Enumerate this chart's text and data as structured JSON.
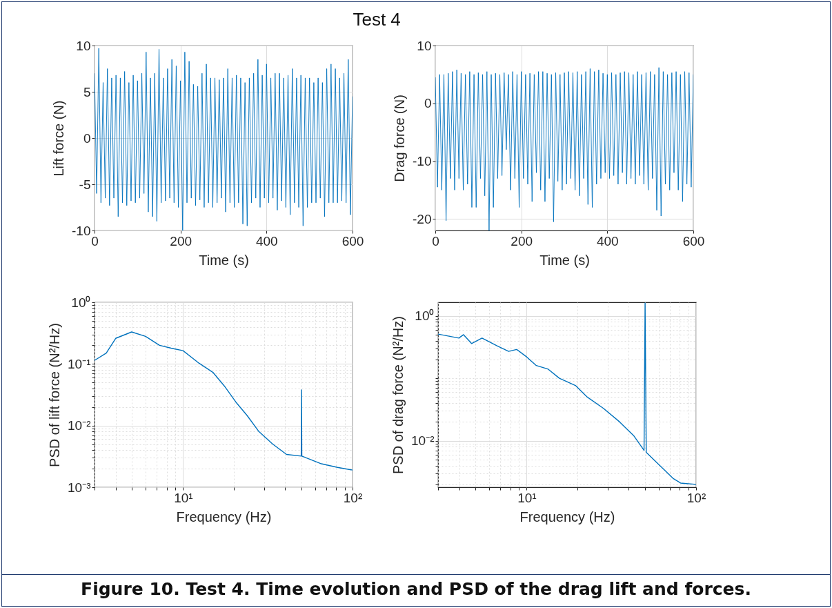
{
  "chart_data": [
    {
      "type": "line",
      "title": "Test 4",
      "annotations": [
        "Figure 10. Test 4. Time evolution and PSD of the drag lift and forces."
      ],
      "xlabel": "Time (s)",
      "ylabel": "Lift force (N)",
      "xlim": [
        0,
        600
      ],
      "ylim": [
        -10,
        10
      ],
      "xticks": [
        0,
        200,
        400,
        600
      ],
      "yticks": [
        -10,
        -5,
        0,
        5,
        10
      ],
      "grid": true,
      "x": [
        0,
        5,
        10,
        15,
        20,
        25,
        30,
        35,
        40,
        45,
        50,
        55,
        60,
        65,
        70,
        75,
        80,
        85,
        90,
        95,
        100,
        105,
        110,
        115,
        120,
        125,
        130,
        135,
        140,
        145,
        150,
        155,
        160,
        165,
        170,
        175,
        180,
        185,
        190,
        195,
        200,
        205,
        210,
        215,
        220,
        225,
        230,
        235,
        240,
        245,
        250,
        255,
        260,
        265,
        270,
        275,
        280,
        285,
        290,
        295,
        300,
        305,
        310,
        315,
        320,
        325,
        330,
        335,
        340,
        345,
        350,
        355,
        360,
        365,
        370,
        375,
        380,
        385,
        390,
        395,
        400,
        405,
        410,
        415,
        420,
        425,
        430,
        435,
        440,
        445,
        450,
        455,
        460,
        465,
        470,
        475,
        480,
        485,
        490,
        495,
        500,
        505,
        510,
        515,
        520,
        525,
        530,
        535,
        540,
        545,
        550,
        555,
        560,
        565,
        570,
        575,
        580,
        585,
        590,
        595,
        600
      ],
      "series": [
        {
          "color": "#0072bd",
          "values": [
            7,
            -6,
            9.7,
            -7,
            6,
            -6.5,
            7.5,
            -7.3,
            6.5,
            -6.5,
            6.8,
            -8.5,
            6.5,
            -7,
            7.2,
            -7.3,
            6,
            -6.8,
            6.8,
            -7,
            6.2,
            -6.5,
            7,
            -6,
            9.3,
            -8,
            6.5,
            -8.5,
            7,
            -9,
            9.6,
            -7,
            6.5,
            -6.8,
            7.5,
            -6.5,
            8.5,
            -7,
            7.8,
            -7.5,
            6.2,
            -10,
            9.3,
            -7,
            8.3,
            -6.5,
            5.8,
            -7.3,
            5.6,
            -6.7,
            7,
            -7.5,
            8,
            -7,
            6.5,
            -7.5,
            6.5,
            -7,
            6.3,
            -6.5,
            6.5,
            -8,
            7.5,
            -7,
            6.5,
            -7.5,
            6.8,
            -7,
            6.5,
            -9.3,
            6,
            -9.5,
            6.5,
            -7,
            7,
            -6.5,
            8.5,
            -7.5,
            6.8,
            -6.5,
            8,
            -7,
            6.5,
            -6.5,
            7,
            -7.8,
            7,
            -6.8,
            6.5,
            -7.5,
            6.8,
            -8.3,
            7.5,
            -7,
            6.5,
            -7.5,
            6.8,
            -9.5,
            6.5,
            -7.5,
            6.5,
            -7,
            6,
            -7,
            6.5,
            -6.5,
            6,
            -8.5,
            7.5,
            -7,
            8,
            -7,
            7.5,
            -7,
            6.5,
            -6.8,
            7,
            -7,
            8.5,
            -8.3,
            4.5
          ]
        }
      ]
    },
    {
      "type": "line",
      "xlabel": "Time (s)",
      "ylabel": "Drag force (N)",
      "xlim": [
        0,
        600
      ],
      "ylim": [
        -22,
        10
      ],
      "xticks": [
        0,
        200,
        400,
        600
      ],
      "yticks": [
        -20,
        -10,
        0,
        10
      ],
      "grid": true,
      "x": [
        0,
        5,
        10,
        15,
        20,
        25,
        30,
        35,
        40,
        45,
        50,
        55,
        60,
        65,
        70,
        75,
        80,
        85,
        90,
        95,
        100,
        105,
        110,
        115,
        120,
        125,
        130,
        135,
        140,
        145,
        150,
        155,
        160,
        165,
        170,
        175,
        180,
        185,
        190,
        195,
        200,
        205,
        210,
        215,
        220,
        225,
        230,
        235,
        240,
        245,
        250,
        255,
        260,
        265,
        270,
        275,
        280,
        285,
        290,
        295,
        300,
        305,
        310,
        315,
        320,
        325,
        330,
        335,
        340,
        345,
        350,
        355,
        360,
        365,
        370,
        375,
        380,
        385,
        390,
        395,
        400,
        405,
        410,
        415,
        420,
        425,
        430,
        435,
        440,
        445,
        450,
        455,
        460,
        465,
        470,
        475,
        480,
        485,
        490,
        495,
        500,
        505,
        510,
        515,
        520,
        525,
        530,
        535,
        540,
        545,
        550,
        555,
        560,
        565,
        570,
        575,
        580,
        585,
        590,
        595,
        600
      ],
      "series": [
        {
          "color": "#0072bd",
          "values": [
            4.5,
            -14.5,
            5,
            -15,
            5,
            -20.3,
            5.2,
            -13,
            5.5,
            -15,
            5.8,
            -13,
            5.2,
            -15,
            5,
            -14,
            5.5,
            -18,
            5,
            -18,
            5.3,
            -13,
            5,
            -16,
            5.5,
            -22,
            5,
            -18,
            5.2,
            -13,
            5,
            -12.5,
            5.3,
            -8,
            5,
            -15,
            5.5,
            -13,
            5,
            -18,
            5.5,
            -13,
            5,
            -14,
            5.2,
            -17,
            5,
            -12,
            5.5,
            -15,
            5.5,
            -17,
            5.2,
            -13,
            5,
            -20.5,
            5.3,
            -13.5,
            5,
            -15,
            5.3,
            -14,
            5.5,
            -13,
            5.3,
            -15,
            5.5,
            -16,
            5,
            -13,
            5.5,
            -17.5,
            6,
            -18,
            5.5,
            -14,
            5.8,
            -13,
            5.2,
            -12,
            5,
            -13,
            5.3,
            -12.5,
            5,
            -14,
            5.3,
            -12,
            5.5,
            -14,
            5.3,
            -13,
            5,
            -14,
            5.5,
            -12.5,
            5,
            -14,
            5.3,
            -15,
            5.5,
            -13,
            5,
            -18.5,
            6.2,
            -19.5,
            5.5,
            -14,
            5,
            -15,
            5.3,
            -12,
            5.5,
            -15,
            5,
            -17,
            5.5,
            -14,
            5.3,
            -14.5,
            5
          ]
        }
      ]
    },
    {
      "type": "line",
      "xlabel": "Frequency (Hz)",
      "ylabel": "PSD of lift force (N²/Hz)",
      "log": "xy",
      "xlim": [
        3,
        100
      ],
      "ylim": [
        0.001,
        1
      ],
      "grid": true,
      "xticks": [
        {
          "value": 3,
          "label": null
        },
        {
          "value": 4,
          "label": null
        },
        {
          "value": 5,
          "label": null
        },
        {
          "value": 6,
          "label": null
        },
        {
          "value": 7,
          "label": null
        },
        {
          "value": 8,
          "label": null
        },
        {
          "value": 9,
          "label": null
        },
        {
          "value": 10,
          "label": "10¹"
        },
        {
          "value": 20,
          "label": null
        },
        {
          "value": 30,
          "label": null
        },
        {
          "value": 40,
          "label": null
        },
        {
          "value": 50,
          "label": null
        },
        {
          "value": 60,
          "label": null
        },
        {
          "value": 70,
          "label": null
        },
        {
          "value": 80,
          "label": null
        },
        {
          "value": 90,
          "label": null
        },
        {
          "value": 100,
          "label": "10²"
        }
      ],
      "yticks": [
        {
          "value": 0.001,
          "label": "10⁻³"
        },
        {
          "value": 0.002,
          "label": null
        },
        {
          "value": 0.003,
          "label": null
        },
        {
          "value": 0.004,
          "label": null
        },
        {
          "value": 0.005,
          "label": null
        },
        {
          "value": 0.006,
          "label": null
        },
        {
          "value": 0.007,
          "label": null
        },
        {
          "value": 0.008,
          "label": null
        },
        {
          "value": 0.009,
          "label": null
        },
        {
          "value": 0.01,
          "label": "10⁻²"
        },
        {
          "value": 0.02,
          "label": null
        },
        {
          "value": 0.03,
          "label": null
        },
        {
          "value": 0.04,
          "label": null
        },
        {
          "value": 0.05,
          "label": null
        },
        {
          "value": 0.06,
          "label": null
        },
        {
          "value": 0.07,
          "label": null
        },
        {
          "value": 0.08,
          "label": null
        },
        {
          "value": 0.09,
          "label": null
        },
        {
          "value": 0.1,
          "label": "10⁻¹"
        },
        {
          "value": 0.2,
          "label": null
        },
        {
          "value": 0.3,
          "label": null
        },
        {
          "value": 0.4,
          "label": null
        },
        {
          "value": 0.5,
          "label": null
        },
        {
          "value": 0.6,
          "label": null
        },
        {
          "value": 0.7,
          "label": null
        },
        {
          "value": 0.8,
          "label": null
        },
        {
          "value": 0.9,
          "label": null
        },
        {
          "value": 1,
          "label": "10⁰"
        }
      ],
      "x": [
        3,
        3.52,
        4,
        4.97,
        6,
        7.26,
        8.5,
        10,
        12.4,
        15,
        17.5,
        20.5,
        23.9,
        28,
        33.8,
        40.8,
        49.8,
        50,
        50.2,
        65.5,
        81.5,
        100
      ],
      "series": [
        {
          "color": "#0072bd",
          "values": [
            0.114,
            0.15,
            0.26,
            0.33,
            0.28,
            0.2,
            0.18,
            0.164,
            0.103,
            0.073,
            0.044,
            0.024,
            0.0145,
            0.008,
            0.005,
            0.0034,
            0.0032,
            0.038,
            0.0032,
            0.0024,
            0.0021,
            0.0019
          ]
        }
      ]
    },
    {
      "type": "line",
      "xlabel": "Frequency (Hz)",
      "ylabel": "PSD of drag force (N²/Hz)",
      "log": "xy",
      "xlim": [
        3,
        100
      ],
      "ylim": [
        0.0018,
        1.65
      ],
      "grid": true,
      "xticks": [
        {
          "value": 3,
          "label": null
        },
        {
          "value": 4,
          "label": null
        },
        {
          "value": 5,
          "label": null
        },
        {
          "value": 6,
          "label": null
        },
        {
          "value": 7,
          "label": null
        },
        {
          "value": 8,
          "label": null
        },
        {
          "value": 9,
          "label": null
        },
        {
          "value": 10,
          "label": "10¹"
        },
        {
          "value": 20,
          "label": null
        },
        {
          "value": 30,
          "label": null
        },
        {
          "value": 40,
          "label": null
        },
        {
          "value": 50,
          "label": null
        },
        {
          "value": 60,
          "label": null
        },
        {
          "value": 70,
          "label": null
        },
        {
          "value": 80,
          "label": null
        },
        {
          "value": 90,
          "label": null
        },
        {
          "value": 100,
          "label": "10²"
        }
      ],
      "yticks": [
        {
          "value": 0.002,
          "label": null
        },
        {
          "value": 0.003,
          "label": null
        },
        {
          "value": 0.004,
          "label": null
        },
        {
          "value": 0.005,
          "label": null
        },
        {
          "value": 0.006,
          "label": null
        },
        {
          "value": 0.007,
          "label": null
        },
        {
          "value": 0.008,
          "label": null
        },
        {
          "value": 0.009,
          "label": null
        },
        {
          "value": 0.01,
          "label": "10⁻²"
        },
        {
          "value": 0.02,
          "label": null
        },
        {
          "value": 0.03,
          "label": null
        },
        {
          "value": 0.04,
          "label": null
        },
        {
          "value": 0.05,
          "label": null
        },
        {
          "value": 0.06,
          "label": null
        },
        {
          "value": 0.07,
          "label": null
        },
        {
          "value": 0.08,
          "label": null
        },
        {
          "value": 0.09,
          "label": null
        },
        {
          "value": 0.1,
          "label": null
        },
        {
          "value": 0.2,
          "label": null
        },
        {
          "value": 0.3,
          "label": null
        },
        {
          "value": 0.4,
          "label": null
        },
        {
          "value": 0.5,
          "label": null
        },
        {
          "value": 0.6,
          "label": null
        },
        {
          "value": 0.7,
          "label": null
        },
        {
          "value": 0.8,
          "label": null
        },
        {
          "value": 0.9,
          "label": null
        },
        {
          "value": 1,
          "label": "10⁰"
        }
      ],
      "x": [
        3,
        3.98,
        4.24,
        4.73,
        5.45,
        6.69,
        7.82,
        8.73,
        10,
        11.4,
        13.4,
        15.6,
        19.5,
        22.8,
        28.4,
        35.4,
        42.8,
        49.3,
        50,
        50.8,
        62.4,
        73,
        81,
        100
      ],
      "series": [
        {
          "color": "#0072bd",
          "values": [
            0.51,
            0.44,
            0.5,
            0.36,
            0.44,
            0.33,
            0.27,
            0.29,
            0.22,
            0.16,
            0.14,
            0.1,
            0.076,
            0.05,
            0.033,
            0.02,
            0.0121,
            0.007,
            1.6,
            0.0065,
            0.0038,
            0.0025,
            0.0021,
            0.002
          ]
        }
      ]
    }
  ]
}
